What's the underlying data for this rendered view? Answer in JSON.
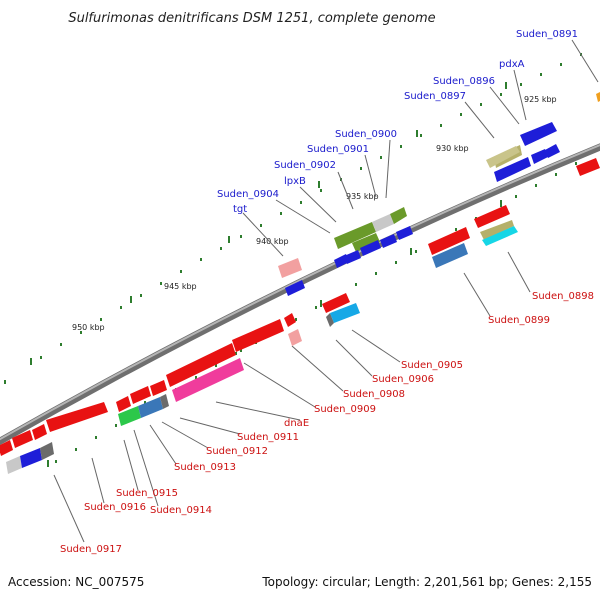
{
  "title": "Sulfurimonas denitrificans DSM 1251, complete genome",
  "accession": "Accession: NC_007575",
  "summary": "Topology: circular; Length: 2,201,561 bp; Genes: 2,155",
  "colors": {
    "forward_label": "#1a1acc",
    "reverse_label": "#cc1111",
    "leader": "#666666",
    "backbone": "#808080",
    "tick": "#2e7d2e"
  },
  "kbp_labels": [
    "925 kbp",
    "930 kbp",
    "935 kbp",
    "940 kbp",
    "945 kbp",
    "950 kbp"
  ],
  "forward_labels": [
    "Suden_0891",
    "pdxA",
    "Suden_0896",
    "Suden_0897",
    "Suden_0900",
    "Suden_0901",
    "Suden_0902",
    "lpxB",
    "Suden_0904",
    "tgt"
  ],
  "reverse_labels": [
    "Suden_0898",
    "Suden_0899",
    "Suden_0905",
    "Suden_0906",
    "Suden_0908",
    "Suden_0909",
    "dnaE",
    "Suden_0911",
    "Suden_0912",
    "Suden_0913",
    "Suden_0915",
    "Suden_0916",
    "Suden_0914",
    "Suden_0917"
  ]
}
